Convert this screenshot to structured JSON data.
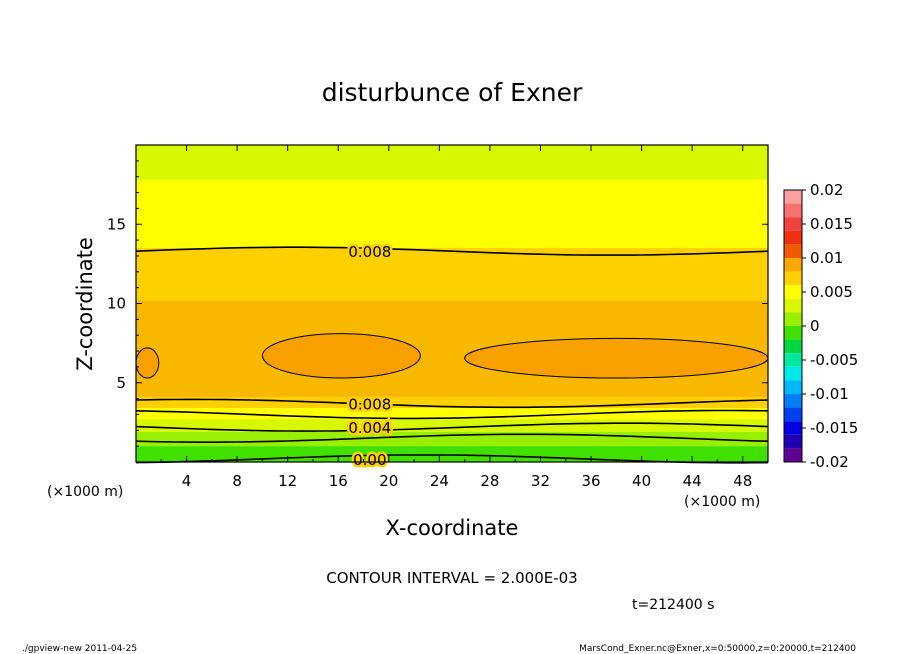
{
  "chart_data": {
    "type": "heatmap",
    "title": "disturbunce of Exner",
    "xlabel": "X-coordinate",
    "ylabel": "Z-coordinate",
    "x_unit": "(×1000 m)",
    "z_unit": "(×1000 m)",
    "xlim": [
      0,
      50
    ],
    "ylim": [
      0,
      20
    ],
    "x_ticks": [
      4,
      8,
      12,
      16,
      20,
      24,
      28,
      32,
      36,
      40,
      44,
      48
    ],
    "y_ticks": [
      5,
      10,
      15
    ],
    "colorbar": {
      "ticks": [
        "0.02",
        "0.015",
        "0.01",
        "0.005",
        "0",
        "-0.005",
        "-0.01",
        "-0.015",
        "-0.02"
      ],
      "levels": [
        {
          "lo": 0.018,
          "hi": 0.02,
          "color": "#f8a0a0"
        },
        {
          "lo": 0.016,
          "hi": 0.018,
          "color": "#f87070"
        },
        {
          "lo": 0.014,
          "hi": 0.016,
          "color": "#f04040"
        },
        {
          "lo": 0.012,
          "hi": 0.014,
          "color": "#f03010"
        },
        {
          "lo": 0.01,
          "hi": 0.012,
          "color": "#f05a00"
        },
        {
          "lo": 0.008,
          "hi": 0.01,
          "color": "#f8a800"
        },
        {
          "lo": 0.006,
          "hi": 0.008,
          "color": "#ffd000"
        },
        {
          "lo": 0.004,
          "hi": 0.006,
          "color": "#ffff00"
        },
        {
          "lo": 0.002,
          "hi": 0.004,
          "color": "#d8f800"
        },
        {
          "lo": 0.0,
          "hi": 0.002,
          "color": "#98f000"
        },
        {
          "lo": -0.002,
          "hi": 0.0,
          "color": "#40e000"
        },
        {
          "lo": -0.004,
          "hi": -0.002,
          "color": "#00d840"
        },
        {
          "lo": -0.006,
          "hi": -0.004,
          "color": "#00e8a0"
        },
        {
          "lo": -0.008,
          "hi": -0.006,
          "color": "#00e8e8"
        },
        {
          "lo": -0.01,
          "hi": -0.008,
          "color": "#00b8f8"
        },
        {
          "lo": -0.012,
          "hi": -0.01,
          "color": "#0080f8"
        },
        {
          "lo": -0.014,
          "hi": -0.012,
          "color": "#0040f0"
        },
        {
          "lo": -0.016,
          "hi": -0.014,
          "color": "#0000e0"
        },
        {
          "lo": -0.018,
          "hi": -0.016,
          "color": "#2000b0"
        },
        {
          "lo": -0.02,
          "hi": -0.018,
          "color": "#600090"
        }
      ]
    },
    "bands": [
      {
        "z_bottom": 17.8,
        "z_top": 20.0,
        "value_range": [
          0.002,
          0.004
        ],
        "color": "#d8f800"
      },
      {
        "z_bottom": 13.5,
        "z_top": 17.8,
        "value_range": [
          0.004,
          0.006
        ],
        "color": "#ffff00"
      },
      {
        "z_bottom": 10.2,
        "z_top": 13.5,
        "value_range": [
          0.006,
          0.008
        ],
        "color": "#ffd000"
      },
      {
        "z_bottom": 4.1,
        "z_top": 10.2,
        "value_range": [
          0.008,
          0.01
        ],
        "color": "#f8b800"
      },
      {
        "z_bottom": 3.4,
        "z_top": 4.1,
        "value_range": [
          0.006,
          0.008
        ],
        "color": "#ffd000"
      },
      {
        "z_bottom": 2.7,
        "z_top": 3.4,
        "value_range": [
          0.004,
          0.006
        ],
        "color": "#ffff00"
      },
      {
        "z_bottom": 1.9,
        "z_top": 2.7,
        "value_range": [
          0.002,
          0.004
        ],
        "color": "#d8f800"
      },
      {
        "z_bottom": 1.0,
        "z_top": 1.9,
        "value_range": [
          0.0,
          0.002
        ],
        "color": "#98f000"
      },
      {
        "z_bottom": 0.0,
        "z_top": 1.0,
        "value_range": [
          -0.002,
          0.0
        ],
        "color": "#40e000"
      }
    ],
    "contour_lines": [
      {
        "z": 13.3,
        "label": "0.008",
        "label_x": 18.5
      },
      {
        "z": 3.7,
        "label": "0.008",
        "label_x": 18.5
      },
      {
        "z": 3.0,
        "label": null
      },
      {
        "z": 2.2,
        "label": "0.004",
        "label_x": 18.5
      },
      {
        "z": 1.5,
        "label": null
      },
      {
        "z": 0.2,
        "label": "0.00",
        "label_x": 18.5
      }
    ],
    "max_regions": [
      {
        "x_range": [
          10,
          22.5
        ],
        "z_range": [
          5.3,
          8.1
        ],
        "value_range": [
          0.01,
          0.012
        ],
        "color": "#f8a000"
      },
      {
        "x_range": [
          26,
          50
        ],
        "z_range": [
          5.3,
          7.8
        ],
        "value_range": [
          0.01,
          0.012
        ],
        "color": "#f8a000"
      },
      {
        "x_range": [
          0,
          1.8
        ],
        "z_range": [
          5.3,
          7.2
        ],
        "value_range": [
          0.01,
          0.012
        ],
        "color": "#f8a000"
      }
    ],
    "annotations": {
      "contour_interval": "CONTOUR INTERVAL = 2.000E-03",
      "time": "t=212400 s"
    }
  },
  "footer": {
    "left": "./gpview-new  2011-04-25",
    "right": "MarsCond_Exner.nc@Exner,x=0:50000,z=0:20000,t=212400"
  }
}
